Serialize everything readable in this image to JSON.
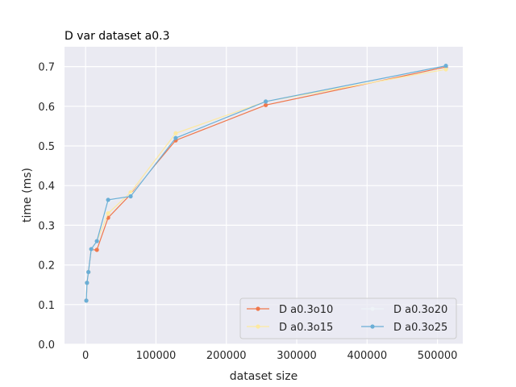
{
  "chart_data": {
    "type": "line",
    "title": "D var dataset a0.3",
    "xlabel": "dataset size",
    "ylabel": "time (ms)",
    "xlim": [
      -30000,
      536000
    ],
    "ylim": [
      0,
      0.75
    ],
    "xticks": [
      0,
      100000,
      200000,
      300000,
      400000,
      500000
    ],
    "yticks": [
      0.0,
      0.1,
      0.2,
      0.3,
      0.4,
      0.5,
      0.6,
      0.7
    ],
    "xtick_labels": [
      "0",
      "100000",
      "200000",
      "300000",
      "400000",
      "500000"
    ],
    "ytick_labels": [
      "0.0",
      "0.1",
      "0.2",
      "0.3",
      "0.4",
      "0.5",
      "0.6",
      "0.7"
    ],
    "grid": true,
    "legend_position": "lower-right",
    "legend_columns": 2,
    "series": [
      {
        "name": "D a0.3o10",
        "color": "#f0774b",
        "x": [
          1000,
          2000,
          4000,
          8000,
          16000,
          32000,
          64000,
          128000,
          256000,
          512000
        ],
        "y": [
          0.11,
          0.155,
          0.182,
          0.238,
          0.238,
          0.319,
          0.378,
          0.514,
          0.603,
          0.699
        ]
      },
      {
        "name": "D a0.3o15",
        "color": "#fde9a0",
        "x": [
          1000,
          2000,
          4000,
          8000,
          16000,
          32000,
          64000,
          128000,
          256000,
          512000
        ],
        "y": [
          0.11,
          0.155,
          0.182,
          0.238,
          0.26,
          0.33,
          0.383,
          0.532,
          0.612,
          0.693
        ]
      },
      {
        "name": "D a0.3o20",
        "color": "#eef3f7",
        "x": [
          1000,
          2000,
          4000,
          8000,
          16000,
          32000,
          64000,
          128000,
          256000,
          512000
        ],
        "y": [
          0.11,
          0.155,
          0.182,
          0.238,
          0.26,
          0.36,
          0.375,
          0.522,
          0.612,
          0.702
        ]
      },
      {
        "name": "D a0.3o25",
        "color": "#6aaed6",
        "x": [
          1000,
          2000,
          4000,
          8000,
          16000,
          32000,
          64000,
          128000,
          256000,
          512000
        ],
        "y": [
          0.11,
          0.155,
          0.182,
          0.24,
          0.26,
          0.364,
          0.373,
          0.52,
          0.612,
          0.702
        ]
      }
    ]
  }
}
